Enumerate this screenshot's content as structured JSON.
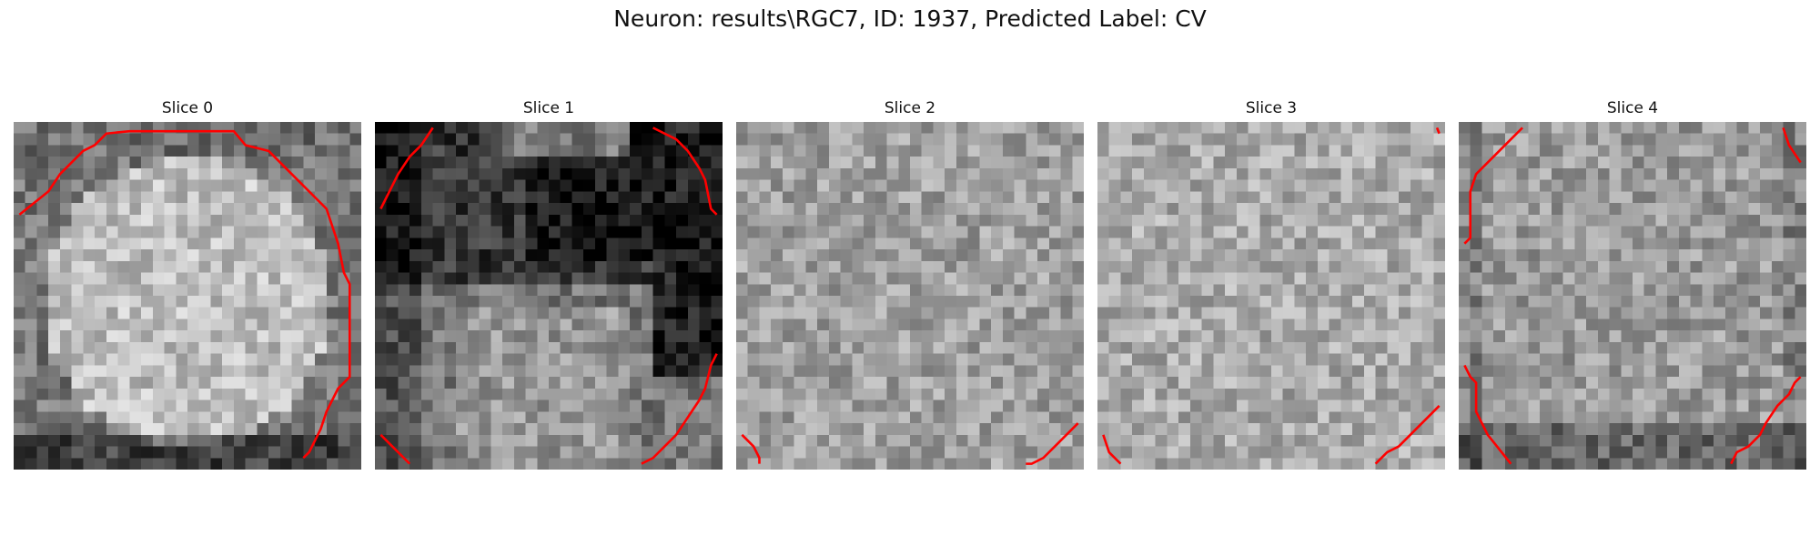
{
  "figure": {
    "title": "Neuron: results\\RGC7, ID: 1937, Predicted Label: CV"
  },
  "panels": [
    {
      "title": "Slice 0",
      "pattern": "bright-disk",
      "contour_color": "#ff0000"
    },
    {
      "title": "Slice 1",
      "pattern": "dark-upper",
      "contour_color": "#ff0000"
    },
    {
      "title": "Slice 2",
      "pattern": "uniform-noise",
      "contour_color": "#ff0000"
    },
    {
      "title": "Slice 3",
      "pattern": "uniform-noise-light",
      "contour_color": "#ff0000"
    },
    {
      "title": "Slice 4",
      "pattern": "noise-dark-bottom",
      "contour_color": "#ff0000"
    }
  ],
  "colormap": "gray"
}
